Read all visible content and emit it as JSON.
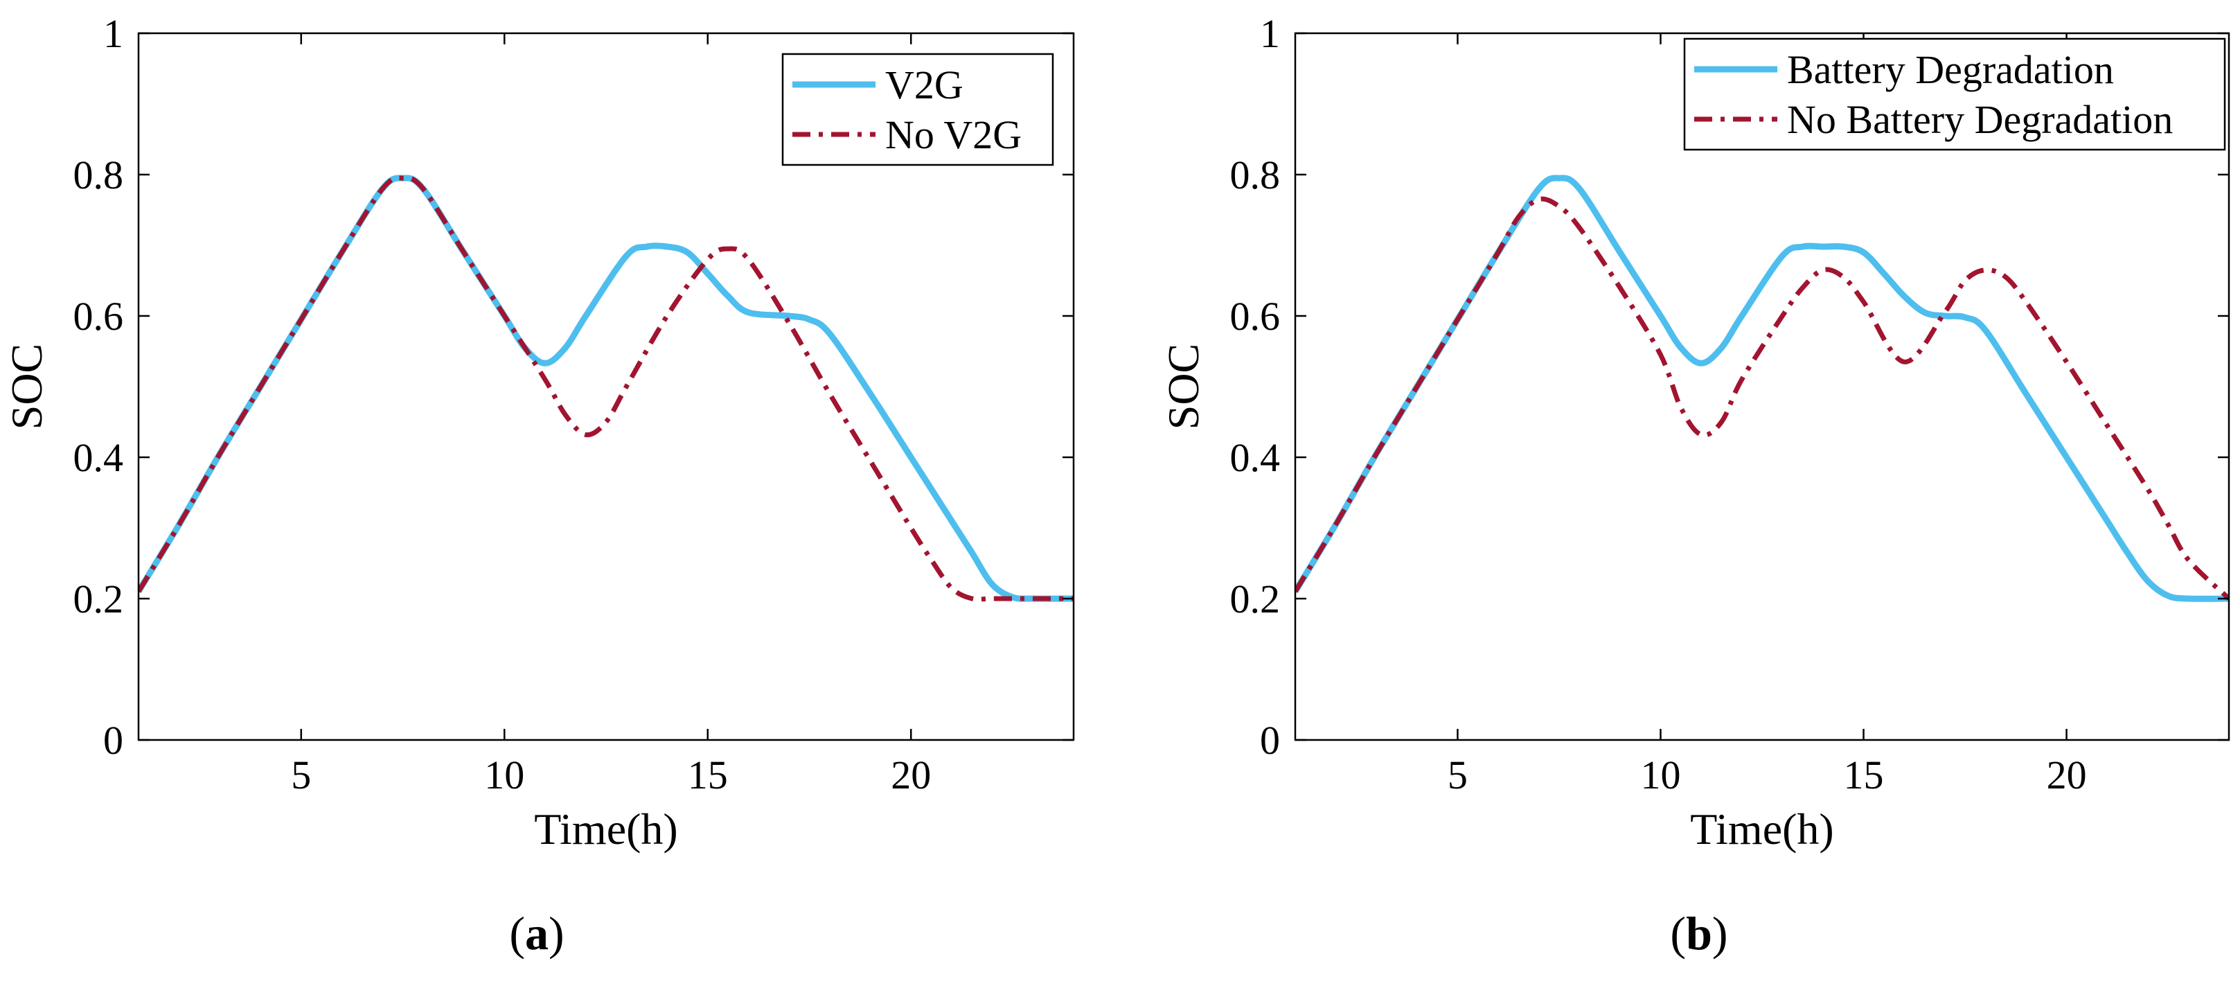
{
  "figure": {
    "colors": {
      "series1": "#4dbeee",
      "series2": "#a2142f",
      "axis": "#000000",
      "background": "#ffffff"
    },
    "captions": [
      {
        "open": "(",
        "letter": "a",
        "close": ")"
      },
      {
        "open": "(",
        "letter": "b",
        "close": ")"
      }
    ]
  },
  "chart_data": [
    {
      "type": "line",
      "title": "",
      "xlabel": "Time(h)",
      "ylabel": "SOC",
      "xlim": [
        1,
        24
      ],
      "ylim": [
        0,
        1
      ],
      "xticks": [
        5,
        10,
        15,
        20
      ],
      "xtick_labels": [
        "5",
        "10",
        "15",
        "20"
      ],
      "yticks": [
        0,
        0.2,
        0.4,
        0.6,
        0.8,
        1
      ],
      "ytick_labels": [
        "0",
        "0.2",
        "0.4",
        "0.6",
        "0.8",
        "1"
      ],
      "grid": false,
      "legend_position": "top-right",
      "series": [
        {
          "name": "V2G",
          "style": "solid",
          "x": [
            1,
            2,
            3,
            4,
            5,
            6,
            7,
            7.5,
            8,
            9,
            10,
            10.5,
            11,
            11.5,
            12,
            13,
            13.5,
            14,
            14.5,
            15,
            15.5,
            16,
            17,
            17.5,
            18,
            19,
            20,
            21,
            21.5,
            22,
            22.5,
            23,
            24
          ],
          "y": [
            0.21,
            0.305,
            0.405,
            0.5,
            0.595,
            0.69,
            0.78,
            0.795,
            0.78,
            0.69,
            0.6,
            0.555,
            0.533,
            0.555,
            0.6,
            0.685,
            0.698,
            0.698,
            0.69,
            0.66,
            0.628,
            0.605,
            0.6,
            0.595,
            0.575,
            0.49,
            0.4,
            0.31,
            0.265,
            0.22,
            0.202,
            0.2,
            0.2
          ]
        },
        {
          "name": "No V2G",
          "style": "dashdot",
          "x": [
            1,
            2,
            3,
            4,
            5,
            6,
            7,
            7.5,
            8,
            9,
            10,
            11,
            11.5,
            12,
            12.5,
            13,
            14,
            15,
            15.5,
            16,
            17,
            18,
            19,
            20,
            20.5,
            21,
            21.5,
            22,
            23,
            24
          ],
          "y": [
            0.21,
            0.305,
            0.405,
            0.5,
            0.595,
            0.69,
            0.78,
            0.795,
            0.78,
            0.69,
            0.6,
            0.51,
            0.46,
            0.432,
            0.45,
            0.5,
            0.6,
            0.68,
            0.695,
            0.68,
            0.59,
            0.49,
            0.395,
            0.3,
            0.255,
            0.215,
            0.2,
            0.2,
            0.2,
            0.2
          ]
        }
      ]
    },
    {
      "type": "line",
      "title": "",
      "xlabel": "Time(h)",
      "ylabel": "SOC",
      "xlim": [
        1,
        24
      ],
      "ylim": [
        0,
        1
      ],
      "xticks": [
        5,
        10,
        15,
        20
      ],
      "xtick_labels": [
        "5",
        "10",
        "15",
        "20"
      ],
      "yticks": [
        0,
        0.2,
        0.4,
        0.6,
        0.8,
        1
      ],
      "ytick_labels": [
        "0",
        "0.2",
        "0.4",
        "0.6",
        "0.8",
        "1"
      ],
      "grid": false,
      "legend_position": "top-right",
      "series": [
        {
          "name": "Battery Degradation",
          "style": "solid",
          "x": [
            1,
            2,
            3,
            4,
            5,
            6,
            7,
            7.5,
            8,
            9,
            10,
            10.5,
            11,
            11.5,
            12,
            13,
            13.5,
            14,
            14.5,
            15,
            15.5,
            16,
            16.5,
            17,
            17.5,
            18,
            19,
            20,
            21,
            21.5,
            22,
            22.5,
            23,
            24
          ],
          "y": [
            0.21,
            0.305,
            0.405,
            0.5,
            0.595,
            0.69,
            0.78,
            0.795,
            0.78,
            0.69,
            0.6,
            0.555,
            0.533,
            0.555,
            0.6,
            0.685,
            0.698,
            0.698,
            0.698,
            0.69,
            0.66,
            0.628,
            0.605,
            0.6,
            0.598,
            0.58,
            0.49,
            0.4,
            0.31,
            0.265,
            0.225,
            0.204,
            0.2,
            0.2
          ]
        },
        {
          "name": "No Battery Degradation",
          "style": "dashdot",
          "x": [
            1,
            2,
            3,
            4,
            5,
            6,
            6.5,
            7,
            7.5,
            8,
            9,
            10,
            10.5,
            11,
            11.5,
            12,
            13,
            13.5,
            14,
            14.5,
            15,
            16,
            17,
            17.5,
            18,
            18.5,
            19,
            20,
            21,
            22,
            22.5,
            23,
            24
          ],
          "y": [
            0.21,
            0.305,
            0.405,
            0.5,
            0.595,
            0.69,
            0.74,
            0.765,
            0.755,
            0.725,
            0.64,
            0.545,
            0.47,
            0.432,
            0.45,
            0.51,
            0.6,
            0.64,
            0.665,
            0.655,
            0.62,
            0.535,
            0.605,
            0.65,
            0.665,
            0.655,
            0.62,
            0.535,
            0.445,
            0.355,
            0.305,
            0.255,
            0.2
          ]
        }
      ]
    }
  ]
}
